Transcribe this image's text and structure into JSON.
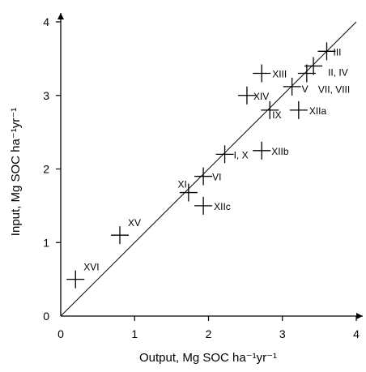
{
  "chart_data": {
    "type": "scatter",
    "xlabel": "Output, Mg SOC ha⁻¹yr⁻¹",
    "ylabel": "Input, Mg SOC ha⁻¹yr⁻¹",
    "xlim": [
      0,
      4
    ],
    "ylim": [
      0,
      4
    ],
    "x_ticks": [
      "0",
      "1",
      "2",
      "3",
      "4"
    ],
    "y_ticks": [
      "0",
      "1",
      "2",
      "3",
      "4"
    ],
    "grid": false,
    "reference_line": "1:1",
    "marker": "+",
    "points": [
      {
        "label": "XVI",
        "x": 0.2,
        "y": 0.5
      },
      {
        "label": "XV",
        "x": 0.8,
        "y": 1.1
      },
      {
        "label": "XI",
        "x": 1.73,
        "y": 1.68
      },
      {
        "label": "XIIc",
        "x": 1.93,
        "y": 1.5
      },
      {
        "label": "VI",
        "x": 1.93,
        "y": 1.9
      },
      {
        "label": "I, X",
        "x": 2.22,
        "y": 2.2
      },
      {
        "label": "XIIb",
        "x": 2.72,
        "y": 2.25
      },
      {
        "label": "IX",
        "x": 2.83,
        "y": 2.8
      },
      {
        "label": "XIIa",
        "x": 3.22,
        "y": 2.8
      },
      {
        "label": "XIV",
        "x": 2.52,
        "y": 3.0
      },
      {
        "label": "V",
        "x": 3.13,
        "y": 3.12
      },
      {
        "label": "XIII",
        "x": 2.72,
        "y": 3.3
      },
      {
        "label": "VII, VIII",
        "x": 3.33,
        "y": 3.3
      },
      {
        "label": "II, IV",
        "x": 3.42,
        "y": 3.4
      },
      {
        "label": "III",
        "x": 3.6,
        "y": 3.6
      }
    ]
  }
}
